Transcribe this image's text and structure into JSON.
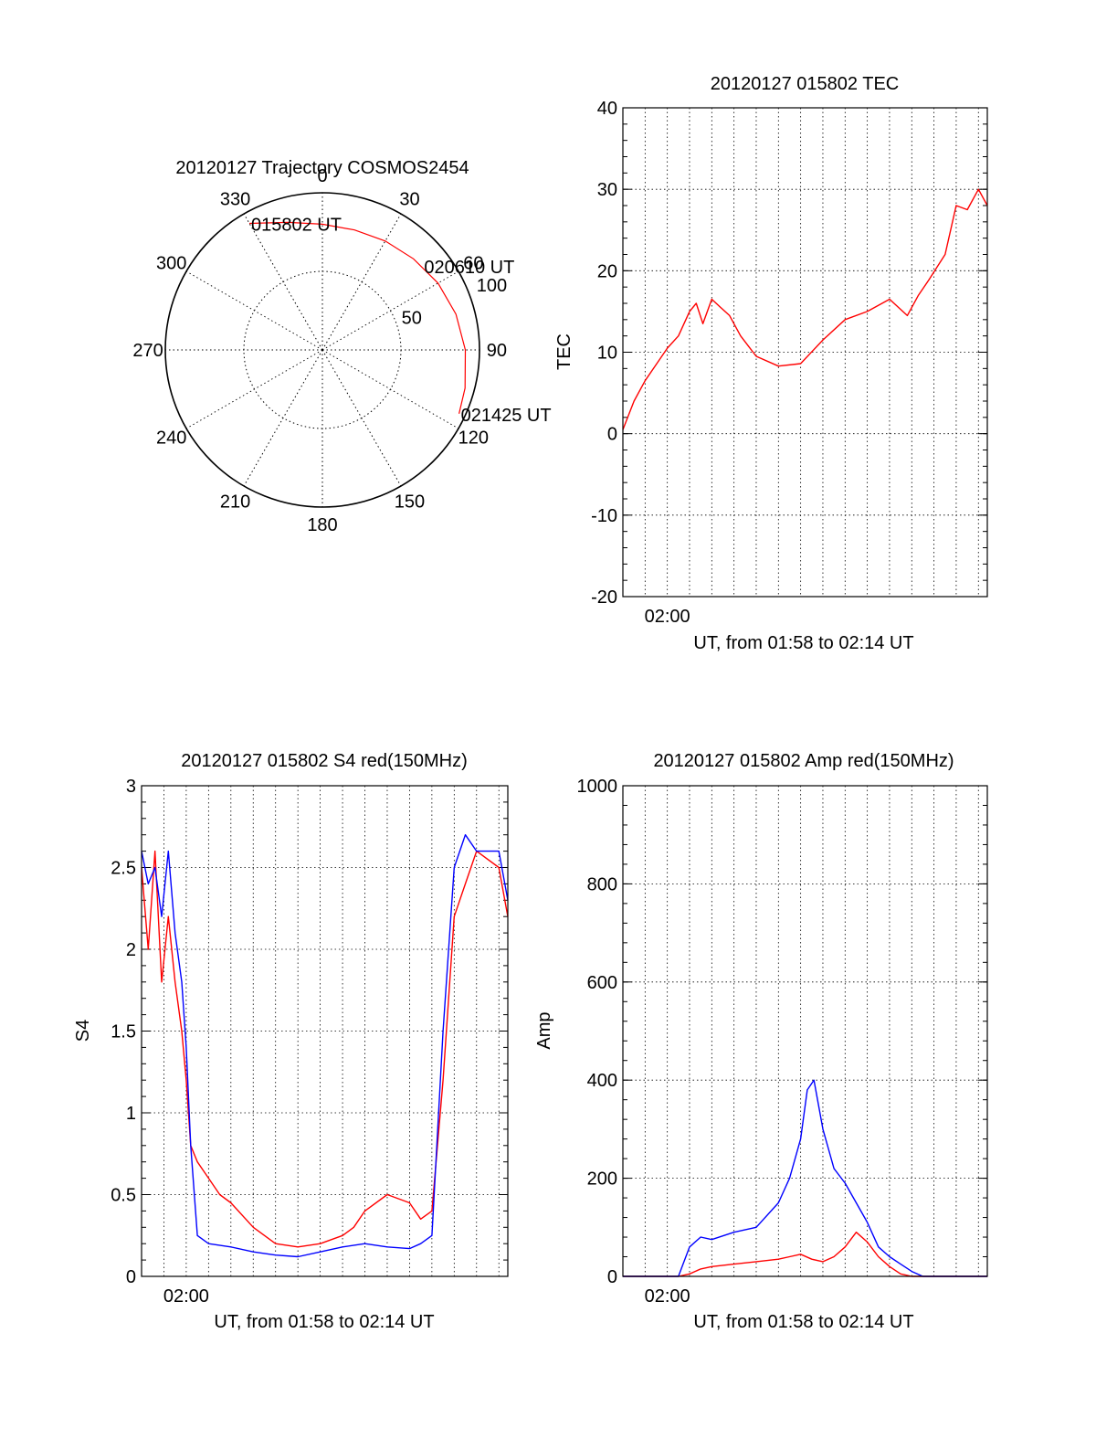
{
  "chart_data": [
    {
      "type": "polar",
      "title": "20120127 Trajectory COSMOS2454",
      "azimuth_labels": [
        "0",
        "30",
        "60",
        "90",
        "120",
        "150",
        "180",
        "210",
        "240",
        "270",
        "300",
        "330"
      ],
      "ring_labels": [
        "50",
        "100"
      ],
      "rmax": 100,
      "series": [
        {
          "color": "#ff0000",
          "points": [
            {
              "az": 330,
              "r": 93
            },
            {
              "az": 345,
              "r": 84
            },
            {
              "az": 0,
              "r": 80
            },
            {
              "az": 15,
              "r": 79
            },
            {
              "az": 30,
              "r": 80
            },
            {
              "az": 45,
              "r": 82
            },
            {
              "az": 60,
              "r": 85
            },
            {
              "az": 75,
              "r": 88
            },
            {
              "az": 90,
              "r": 91
            },
            {
              "az": 105,
              "r": 94
            },
            {
              "az": 115,
              "r": 96
            }
          ]
        }
      ],
      "annotations": [
        {
          "text": "015802 UT",
          "az": 330,
          "r": 93
        },
        {
          "text": "020610 UT",
          "az": 50,
          "r": 83
        },
        {
          "text": "021425 UT",
          "az": 115,
          "r": 96
        }
      ]
    },
    {
      "type": "line",
      "title": "20120127 015802 TEC",
      "xlabel": "UT, from 01:58 to 02:14 UT",
      "ylabel": "TEC",
      "xlim": [
        0,
        16.4
      ],
      "ylim": [
        -20,
        40
      ],
      "xtick_labels": [
        {
          "x": 2,
          "label": "02:00"
        }
      ],
      "yticks": [
        -20,
        -10,
        0,
        10,
        20,
        30,
        40
      ],
      "ytick_labels": [
        "-20",
        "-10",
        "0",
        "10",
        "20",
        "30",
        "40"
      ],
      "grid": true,
      "series": [
        {
          "color": "#ff0000",
          "x": [
            0,
            0.5,
            1,
            1.5,
            2,
            2.5,
            3,
            3.3,
            3.6,
            4,
            4.4,
            4.8,
            5.3,
            6,
            7,
            8,
            9,
            10,
            11,
            12,
            12.8,
            13.3,
            13.8,
            14.5,
            15,
            15.5,
            16,
            16.4
          ],
          "y": [
            0.5,
            4,
            6.5,
            8.5,
            10.5,
            12,
            15,
            16,
            13.5,
            16.5,
            15.5,
            14.5,
            12,
            9.5,
            8.3,
            8.6,
            11.5,
            14,
            15,
            16.5,
            14.5,
            17,
            19,
            22,
            28,
            27.5,
            30,
            28
          ]
        }
      ]
    },
    {
      "type": "line",
      "title": "20120127 015802 S4 red(150MHz)",
      "xlabel": "UT, from 01:58 to 02:14 UT",
      "ylabel": "S4",
      "xlim": [
        0,
        16.4
      ],
      "ylim": [
        0,
        3
      ],
      "xtick_labels": [
        {
          "x": 2,
          "label": "02:00"
        }
      ],
      "yticks": [
        0,
        0.5,
        1,
        1.5,
        2,
        2.5,
        3
      ],
      "ytick_labels": [
        "0",
        "0.5",
        "1",
        "1.5",
        "2",
        "2.5",
        "3"
      ],
      "grid": true,
      "series": [
        {
          "color": "#ff0000",
          "x": [
            0,
            0.3,
            0.6,
            0.9,
            1.2,
            1.5,
            1.8,
            2,
            2.2,
            2.5,
            3,
            3.5,
            4,
            5,
            6,
            7,
            8,
            9,
            9.5,
            10,
            11,
            12,
            12.5,
            13,
            13.5,
            14,
            14.5,
            15,
            16,
            16.4
          ],
          "y": [
            2.5,
            2.0,
            2.6,
            1.8,
            2.2,
            1.8,
            1.5,
            1.2,
            0.8,
            0.7,
            0.6,
            0.5,
            0.45,
            0.3,
            0.2,
            0.18,
            0.2,
            0.25,
            0.3,
            0.4,
            0.5,
            0.45,
            0.35,
            0.4,
            1.2,
            2.2,
            2.4,
            2.6,
            2.5,
            2.2
          ]
        },
        {
          "color": "#0000ff",
          "x": [
            0,
            0.3,
            0.6,
            0.9,
            1.2,
            1.5,
            1.8,
            2,
            2.2,
            2.5,
            3,
            4,
            5,
            6,
            7,
            8,
            9,
            10,
            11,
            12,
            12.5,
            13,
            13.5,
            14,
            14.5,
            15,
            16,
            16.4
          ],
          "y": [
            2.6,
            2.4,
            2.5,
            2.2,
            2.6,
            2.1,
            1.8,
            1.4,
            0.8,
            0.25,
            0.2,
            0.18,
            0.15,
            0.13,
            0.12,
            0.15,
            0.18,
            0.2,
            0.18,
            0.17,
            0.2,
            0.25,
            1.5,
            2.5,
            2.7,
            2.6,
            2.6,
            2.3
          ]
        }
      ]
    },
    {
      "type": "line",
      "title": "20120127 015802 Amp red(150MHz)",
      "xlabel": "UT, from 01:58 to 02:14 UT",
      "ylabel": "Amp",
      "xlim": [
        0,
        16.4
      ],
      "ylim": [
        0,
        1000
      ],
      "xtick_labels": [
        {
          "x": 2,
          "label": "02:00"
        }
      ],
      "yticks": [
        0,
        200,
        400,
        600,
        800,
        1000
      ],
      "ytick_labels": [
        "0",
        "200",
        "400",
        "600",
        "800",
        "1000"
      ],
      "grid": true,
      "series": [
        {
          "color": "#ff0000",
          "x": [
            0,
            2.5,
            3,
            3.5,
            4,
            5,
            6,
            7,
            7.5,
            8,
            8.5,
            9,
            9.5,
            10,
            10.5,
            11,
            11.5,
            12,
            12.5,
            13,
            16.4
          ],
          "y": [
            0,
            0,
            5,
            15,
            20,
            25,
            30,
            35,
            40,
            45,
            35,
            30,
            40,
            60,
            90,
            70,
            40,
            20,
            5,
            0,
            0
          ]
        },
        {
          "color": "#0000ff",
          "x": [
            0,
            2.5,
            3,
            3.5,
            4,
            5,
            6,
            7,
            7.5,
            8,
            8.3,
            8.6,
            9,
            9.5,
            10,
            10.5,
            11,
            11.5,
            12,
            12.5,
            13,
            13.5,
            16.4
          ],
          "y": [
            0,
            0,
            60,
            80,
            75,
            90,
            100,
            150,
            200,
            280,
            380,
            400,
            300,
            220,
            190,
            150,
            110,
            60,
            40,
            25,
            10,
            0,
            0
          ]
        }
      ]
    }
  ]
}
